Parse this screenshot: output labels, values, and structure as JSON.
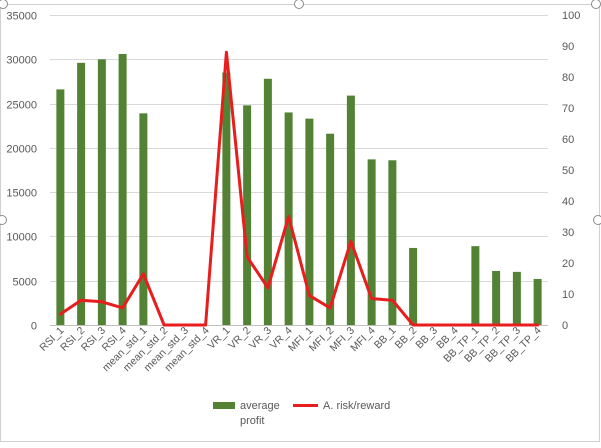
{
  "chart_data": {
    "type": "bar",
    "categories": [
      "RSI_1",
      "RSI_2",
      "RSI_3",
      "RSI_4",
      "mean_std_1",
      "mean_std_2",
      "mean_std_3",
      "mean_std_4",
      "VR_1",
      "VR_2",
      "VR_3",
      "VR_4",
      "MFI_1",
      "MFI_2",
      "MFI_3",
      "MFI_4",
      "BB_1",
      "BB_2",
      "BB_3",
      "BB_4",
      "BB_TP_1",
      "BB_TP_2",
      "BB_TP_3",
      "BB_TP_4"
    ],
    "series": [
      {
        "name": "average profit",
        "type": "bar",
        "axis": "left",
        "color": "#548235",
        "values": [
          26600,
          29600,
          30000,
          30600,
          23900,
          0,
          0,
          0,
          28500,
          24800,
          27800,
          24000,
          23300,
          21600,
          25900,
          18700,
          18600,
          8700,
          0,
          0,
          8900,
          6100,
          6000,
          5200
        ]
      },
      {
        "name": "A. risk/reward",
        "type": "line",
        "axis": "right",
        "color": "#e81d1d",
        "values": [
          3.5,
          8,
          7.5,
          5.5,
          16.5,
          0,
          0,
          0,
          88,
          22,
          12,
          35,
          9.5,
          5.5,
          27,
          8.5,
          8,
          0,
          0,
          0,
          0,
          0,
          0,
          0
        ]
      }
    ],
    "y_left": {
      "min": 0,
      "max": 35000,
      "ticks": [
        0,
        5000,
        10000,
        15000,
        20000,
        25000,
        30000,
        35000
      ]
    },
    "y_right": {
      "min": 0,
      "max": 100,
      "ticks": [
        0,
        10,
        20,
        30,
        40,
        50,
        60,
        70,
        80,
        90,
        100
      ]
    },
    "grid": true,
    "legend_position": "bottom",
    "legend": [
      {
        "line1": "average",
        "line2": "profit",
        "swatch": "bar"
      },
      {
        "line1": "A. risk/reward",
        "line2": "",
        "swatch": "line"
      }
    ],
    "title": "",
    "xlabel": "",
    "ylabel": ""
  }
}
